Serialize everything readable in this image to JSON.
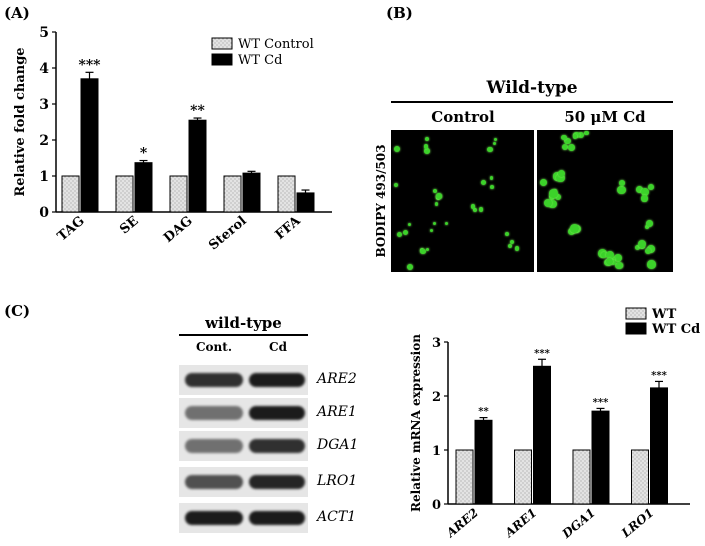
{
  "panels": {
    "a": "(A)",
    "b": "(B)",
    "c": "(C)"
  },
  "colors": {
    "control_fill": "#e3e3e3",
    "treatment_fill": "#000000",
    "fluorescence": "#3cd22a"
  },
  "chart_data": [
    {
      "type": "bar",
      "panel": "A",
      "ylabel": "Relative fold change",
      "xlabel": "",
      "ylim": [
        0,
        5
      ],
      "yticks": [
        "0",
        "1",
        "2",
        "3",
        "4",
        "5"
      ],
      "categories": [
        "TAG",
        "SE",
        "DAG",
        "Sterol",
        "FFA"
      ],
      "series": [
        {
          "name": "WT Control",
          "values": [
            1,
            1,
            1,
            1,
            1
          ],
          "errors": [
            0,
            0,
            0,
            0,
            0
          ]
        },
        {
          "name": "WT Cd",
          "values": [
            3.7,
            1.37,
            2.55,
            1.08,
            0.53
          ],
          "errors": [
            0.18,
            0.06,
            0.06,
            0.05,
            0.08
          ]
        }
      ],
      "significance": [
        "***",
        "*",
        "**",
        "",
        ""
      ],
      "ffa_significance": "**",
      "legend_position": "top-right"
    },
    {
      "type": "bar",
      "panel": "C",
      "ylabel": "Relative mRNA expression",
      "xlabel": "",
      "ylim": [
        0,
        3
      ],
      "yticks": [
        "0",
        "1",
        "2",
        "3"
      ],
      "categories": [
        "ARE2",
        "ARE1",
        "DGA1",
        "LRO1"
      ],
      "series": [
        {
          "name": "WT",
          "values": [
            1,
            1,
            1,
            1
          ],
          "errors": [
            0,
            0,
            0,
            0
          ]
        },
        {
          "name": "WT Cd",
          "values": [
            1.55,
            2.55,
            1.72,
            2.15
          ],
          "errors": [
            0.05,
            0.13,
            0.05,
            0.12
          ]
        }
      ],
      "significance": [
        "**",
        "***",
        "***",
        "***"
      ],
      "legend_position": "top-left"
    }
  ],
  "microscopy": {
    "title": "Wild-type",
    "col1": "Control",
    "col2": "50 μM Cd",
    "stain": "BODIPY 493/503"
  },
  "gel": {
    "title": "wild-type",
    "col1": "Cont.",
    "col2": "Cd",
    "genes": [
      "ARE2",
      "ARE1",
      "DGA1",
      "LRO1",
      "ACT1"
    ],
    "control_intensity": [
      0.85,
      0.55,
      0.55,
      0.7,
      0.95
    ],
    "cd_intensity": [
      0.95,
      0.95,
      0.85,
      0.9,
      0.95
    ]
  }
}
